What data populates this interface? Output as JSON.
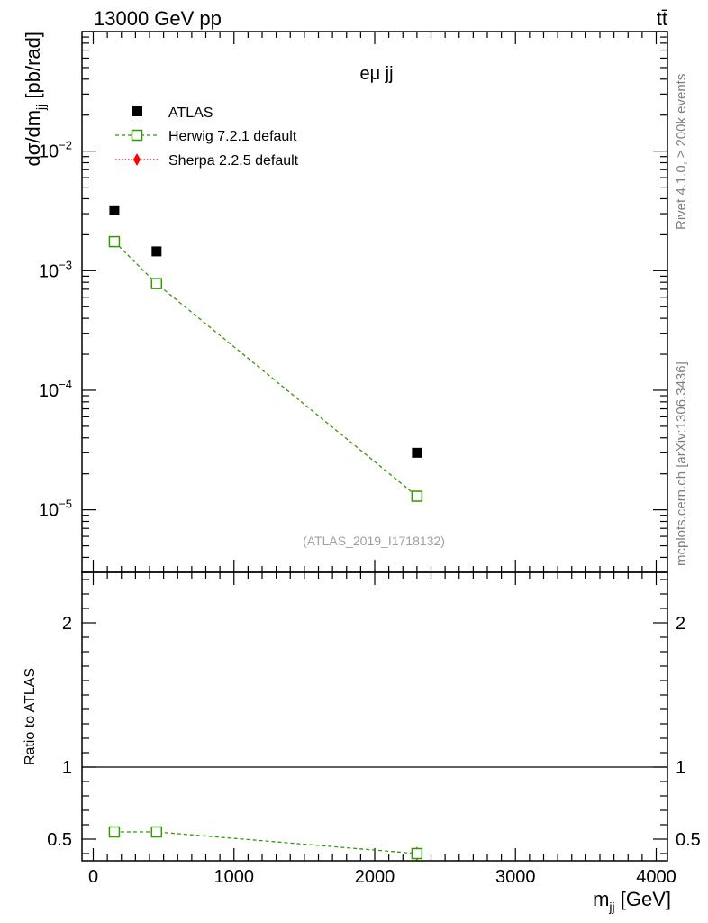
{
  "header": {
    "energy_label": "13000 GeV pp",
    "process_label": "tt̄"
  },
  "side_labels": {
    "rivet": "Rivet 4.1.0, ≥ 200k events",
    "mcplots": "mcplots.cern.ch [arXiv:1306.3436]"
  },
  "chart_data": [
    {
      "type": "scatter",
      "panel": "main",
      "title": "eμ jj",
      "ylabel_main": "dσ/dm",
      "ylabel_sub": "jj",
      "ylabel_unit": " [pb/rad]",
      "yscale": "log",
      "xlim": [
        -80,
        4080
      ],
      "ylim": [
        3e-06,
        0.1
      ],
      "ytick_values": [
        1e-05,
        0.0001,
        0.001,
        0.01
      ],
      "ytick_exponents": [
        "−5",
        "−4",
        "−3",
        "−2"
      ],
      "ytick_base": "10",
      "watermark": "(ATLAS_2019_I1718132)",
      "legend_position": "top-left",
      "series": [
        {
          "name": "ATLAS",
          "color": "#000000",
          "marker": "filled-square",
          "x": [
            150,
            450,
            2300
          ],
          "y": [
            0.0032,
            0.00145,
            3e-05
          ]
        },
        {
          "name": "Herwig 7.2.1 default",
          "color": "#339900",
          "marker": "open-square",
          "line": "dashed",
          "x": [
            150,
            450,
            2300
          ],
          "y": [
            0.00175,
            0.00078,
            1.3e-05
          ]
        },
        {
          "name": "Sherpa 2.2.5 default",
          "color": "#ff0000",
          "marker": "diamond",
          "line": "dotted",
          "x": [],
          "y": []
        }
      ]
    },
    {
      "type": "scatter",
      "panel": "ratio",
      "ylabel": "Ratio to ATLAS",
      "xlabel_main": "m",
      "xlabel_sub": "jj",
      "xlabel_unit": " [GeV]",
      "xlim": [
        -80,
        4080
      ],
      "ylim": [
        0.35,
        2.35
      ],
      "xtick_values": [
        0,
        1000,
        2000,
        3000,
        4000
      ],
      "xtick_labels": [
        "0",
        "1000",
        "2000",
        "3000",
        "4000"
      ],
      "ytick_values": [
        0.5,
        1,
        2
      ],
      "ytick_labels": [
        "0.5",
        "1",
        "2"
      ],
      "reference_line": 1,
      "series": [
        {
          "name": "Herwig 7.2.1 default / ATLAS",
          "color": "#339900",
          "marker": "open-square",
          "line": "dashed",
          "x": [
            150,
            450,
            2300
          ],
          "y": [
            0.55,
            0.55,
            0.4
          ],
          "yerr": [
            0.006,
            0.006,
            0.045
          ]
        }
      ]
    }
  ]
}
